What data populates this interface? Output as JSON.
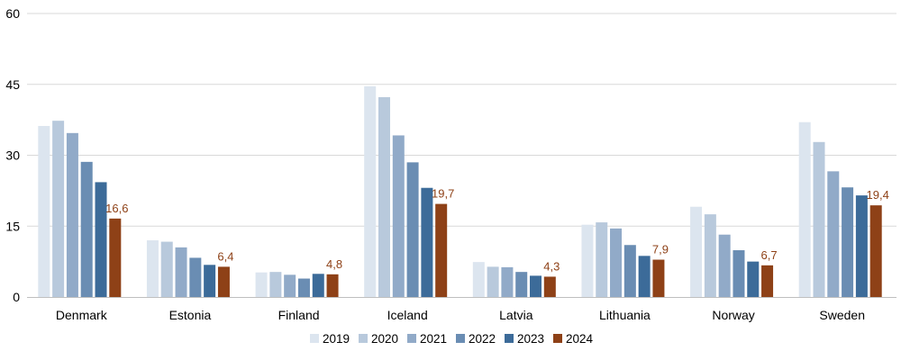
{
  "chart_data": {
    "type": "bar",
    "categories": [
      "Denmark",
      "Estonia",
      "Finland",
      "Iceland",
      "Latvia",
      "Lithuania",
      "Norway",
      "Sweden"
    ],
    "series": [
      {
        "name": "2019",
        "color": "#dce5ef",
        "values": [
          36.2,
          12.0,
          5.2,
          44.6,
          7.4,
          15.3,
          19.1,
          37.0
        ]
      },
      {
        "name": "2020",
        "color": "#b8c9dc",
        "values": [
          37.3,
          11.7,
          5.3,
          42.3,
          6.4,
          15.8,
          17.5,
          32.8
        ]
      },
      {
        "name": "2021",
        "color": "#91aac8",
        "values": [
          34.7,
          10.5,
          4.7,
          34.2,
          6.3,
          14.5,
          13.2,
          26.6
        ]
      },
      {
        "name": "2022",
        "color": "#6a8db3",
        "values": [
          28.6,
          8.3,
          3.9,
          28.5,
          5.3,
          11.0,
          9.9,
          23.2
        ]
      },
      {
        "name": "2023",
        "color": "#3c6b99",
        "values": [
          24.3,
          6.8,
          4.9,
          23.1,
          4.5,
          8.7,
          7.5,
          21.5
        ]
      },
      {
        "name": "2024",
        "color": "#8e4117",
        "values": [
          16.6,
          6.4,
          4.8,
          19.7,
          4.3,
          7.9,
          6.7,
          19.4
        ]
      }
    ],
    "data_labels": {
      "series": "2024",
      "color": "#8e4117",
      "labels": [
        "16,6",
        "6,4",
        "4,8",
        "19,7",
        "4,3",
        "7,9",
        "6,7",
        "19,4"
      ]
    },
    "yticks": [
      0,
      15,
      30,
      45,
      60
    ],
    "ytick_labels": [
      "0",
      "15",
      "30",
      "45",
      "60"
    ],
    "ylim": [
      0,
      60
    ],
    "grid": true,
    "gridline_color": "#d9d9d9",
    "axis_color": "#bfbfbf",
    "legend_position": "bottom-center",
    "title": "",
    "xlabel": "",
    "ylabel": ""
  }
}
